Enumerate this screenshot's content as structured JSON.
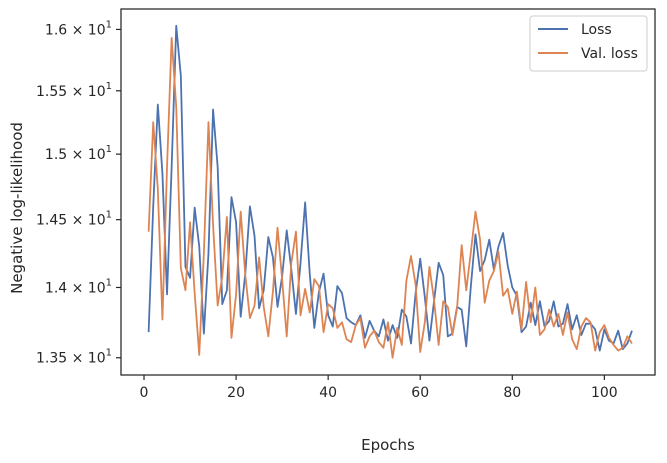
{
  "chart_data": {
    "type": "line",
    "xlabel": "Epochs",
    "ylabel": "Negative log-likelihood",
    "xlim": [
      -5,
      111
    ],
    "ylim": [
      13.38,
      16.17
    ],
    "xticks": [
      0,
      20,
      40,
      60,
      80,
      100
    ],
    "xtick_labels": [
      "0",
      "20",
      "40",
      "60",
      "80",
      "100"
    ],
    "yticks": [
      13.5,
      14.0,
      14.5,
      15.0,
      15.5,
      16.0
    ],
    "ytick_labels": [
      {
        "mantissa": "1.35",
        "base": "10",
        "exp": "1"
      },
      {
        "mantissa": "1.4",
        "base": "10",
        "exp": "1"
      },
      {
        "mantissa": "1.45",
        "base": "10",
        "exp": "1"
      },
      {
        "mantissa": "1.5",
        "base": "10",
        "exp": "1"
      },
      {
        "mantissa": "1.55",
        "base": "10",
        "exp": "1"
      },
      {
        "mantissa": "1.6",
        "base": "10",
        "exp": "1"
      }
    ],
    "y_scale": "log",
    "grid": false,
    "legend_position": "top-right",
    "series": [
      {
        "name": "Loss",
        "color": "#4c72b0",
        "x": [
          1,
          2,
          3,
          4,
          5,
          6,
          7,
          8,
          9,
          10,
          11,
          12,
          13,
          14,
          15,
          16,
          17,
          18,
          19,
          20,
          21,
          22,
          23,
          24,
          25,
          26,
          27,
          28,
          29,
          30,
          31,
          32,
          33,
          34,
          35,
          36,
          37,
          38,
          39,
          40,
          41,
          42,
          43,
          44,
          45,
          46,
          47,
          48,
          49,
          50,
          51,
          52,
          53,
          54,
          55,
          56,
          57,
          58,
          59,
          60,
          61,
          62,
          63,
          64,
          65,
          66,
          67,
          68,
          69,
          70,
          71,
          72,
          73,
          74,
          75,
          76,
          77,
          78,
          79,
          80,
          81,
          82,
          83,
          84,
          85,
          86,
          87,
          88,
          89,
          90,
          91,
          92,
          93,
          94,
          95,
          96,
          97,
          98,
          99,
          100,
          101,
          102,
          103,
          104,
          105,
          106
        ],
        "y": [
          13.68,
          14.6,
          15.39,
          14.85,
          13.95,
          14.9,
          16.03,
          15.62,
          14.15,
          14.07,
          14.59,
          14.3,
          13.67,
          14.25,
          15.35,
          14.9,
          13.88,
          13.98,
          14.67,
          14.48,
          13.79,
          14.1,
          14.6,
          14.38,
          13.85,
          13.98,
          14.37,
          14.22,
          13.86,
          14.08,
          14.42,
          14.13,
          13.81,
          14.18,
          14.63,
          14.1,
          13.71,
          13.97,
          14.1,
          13.8,
          13.72,
          14.01,
          13.96,
          13.78,
          13.75,
          13.73,
          13.8,
          13.64,
          13.76,
          13.69,
          13.65,
          13.77,
          13.62,
          13.73,
          13.64,
          13.84,
          13.79,
          13.6,
          13.96,
          14.21,
          13.93,
          13.62,
          13.9,
          14.18,
          14.09,
          13.65,
          13.67,
          13.86,
          13.84,
          13.58,
          14.01,
          14.39,
          14.12,
          14.2,
          14.35,
          14.13,
          14.3,
          14.4,
          14.16,
          14.0,
          13.94,
          13.68,
          13.72,
          13.89,
          13.73,
          13.9,
          13.72,
          13.76,
          13.9,
          13.72,
          13.74,
          13.88,
          13.7,
          13.8,
          13.66,
          13.74,
          13.74,
          13.7,
          13.55,
          13.7,
          13.62,
          13.6,
          13.69,
          13.56,
          13.6,
          13.69
        ]
      },
      {
        "name": "Val. loss",
        "color": "#dd8452",
        "x": [
          1,
          2,
          3,
          4,
          5,
          6,
          7,
          8,
          9,
          10,
          11,
          12,
          13,
          14,
          15,
          16,
          17,
          18,
          19,
          20,
          21,
          22,
          23,
          24,
          25,
          26,
          27,
          28,
          29,
          30,
          31,
          32,
          33,
          34,
          35,
          36,
          37,
          38,
          39,
          40,
          41,
          42,
          43,
          44,
          45,
          46,
          47,
          48,
          49,
          50,
          51,
          52,
          53,
          54,
          55,
          56,
          57,
          58,
          59,
          60,
          61,
          62,
          63,
          64,
          65,
          66,
          67,
          68,
          69,
          70,
          71,
          72,
          73,
          74,
          75,
          76,
          77,
          78,
          79,
          80,
          81,
          82,
          83,
          84,
          85,
          86,
          87,
          88,
          89,
          90,
          91,
          92,
          93,
          94,
          95,
          96,
          97,
          98,
          99,
          100,
          101,
          102,
          103,
          104,
          105,
          106
        ],
        "y": [
          14.41,
          15.25,
          14.73,
          13.77,
          14.9,
          15.93,
          15.37,
          14.14,
          13.98,
          14.48,
          13.96,
          13.52,
          14.25,
          15.25,
          14.46,
          13.87,
          14.08,
          14.52,
          13.64,
          13.95,
          14.56,
          14.09,
          13.78,
          13.87,
          14.22,
          13.86,
          13.65,
          13.97,
          14.44,
          14.06,
          13.65,
          14.18,
          14.41,
          13.8,
          13.99,
          13.82,
          14.06,
          14.01,
          13.68,
          13.88,
          13.85,
          13.71,
          13.75,
          13.63,
          13.61,
          13.73,
          13.78,
          13.57,
          13.65,
          13.69,
          13.61,
          13.57,
          13.75,
          13.5,
          13.71,
          13.59,
          14.05,
          14.23,
          14.02,
          13.54,
          13.75,
          14.15,
          13.91,
          13.59,
          13.9,
          13.86,
          13.66,
          13.85,
          14.31,
          13.98,
          14.26,
          14.56,
          14.35,
          13.89,
          14.05,
          14.12,
          14.26,
          13.94,
          13.99,
          13.81,
          13.97,
          13.7,
          14.04,
          13.75,
          14.0,
          13.66,
          13.7,
          13.84,
          13.72,
          13.81,
          13.66,
          13.82,
          13.63,
          13.56,
          13.72,
          13.78,
          13.75,
          13.55,
          13.68,
          13.73,
          13.64,
          13.59,
          13.55,
          13.57,
          13.65,
          13.6
        ]
      }
    ]
  }
}
